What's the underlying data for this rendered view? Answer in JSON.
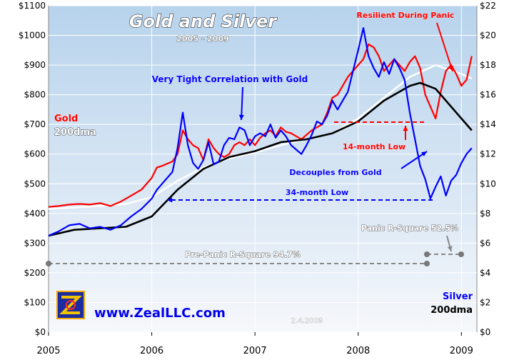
{
  "chart_data": {
    "type": "line",
    "title": "Gold and Silver",
    "subtitle": "2005 - 2009",
    "x_ticks": [
      "2005",
      "2006",
      "2007",
      "2008",
      "2009"
    ],
    "x_range": [
      2005.0,
      2009.15
    ],
    "left_axis": {
      "min": 0,
      "max": 1100,
      "step": 100,
      "tick_labels": [
        "$0",
        "$100",
        "$200",
        "$300",
        "$400",
        "$500",
        "$600",
        "$700",
        "$800",
        "$900",
        "$1000",
        "$1100"
      ]
    },
    "right_axis": {
      "min": 0,
      "max": 22,
      "step": 2,
      "tick_labels": [
        "$0",
        "$2",
        "$4",
        "$6",
        "$8",
        "$10",
        "$12",
        "$14",
        "$16",
        "$18",
        "$20",
        "$22"
      ]
    },
    "grid": true,
    "series": [
      {
        "name": "Gold",
        "axis": "left",
        "color": "#ff0000",
        "x": [
          2005.0,
          2005.1,
          2005.2,
          2005.3,
          2005.4,
          2005.5,
          2005.6,
          2005.7,
          2005.8,
          2005.9,
          2006.0,
          2006.05,
          2006.1,
          2006.2,
          2006.25,
          2006.3,
          2006.35,
          2006.4,
          2006.45,
          2006.5,
          2006.55,
          2006.6,
          2006.65,
          2006.7,
          2006.75,
          2006.8,
          2006.85,
          2006.9,
          2006.95,
          2007.0,
          2007.05,
          2007.1,
          2007.15,
          2007.2,
          2007.25,
          2007.3,
          2007.35,
          2007.4,
          2007.45,
          2007.5,
          2007.55,
          2007.6,
          2007.65,
          2007.7,
          2007.75,
          2007.8,
          2007.85,
          2007.9,
          2007.95,
          2008.0,
          2008.05,
          2008.1,
          2008.15,
          2008.2,
          2008.25,
          2008.3,
          2008.35,
          2008.4,
          2008.45,
          2008.5,
          2008.55,
          2008.6,
          2008.65,
          2008.7,
          2008.75,
          2008.8,
          2008.85,
          2008.9,
          2008.95,
          2009.0,
          2009.05,
          2009.1
        ],
        "y": [
          422,
          425,
          430,
          432,
          430,
          435,
          425,
          440,
          460,
          480,
          520,
          555,
          560,
          575,
          600,
          680,
          650,
          630,
          620,
          580,
          650,
          620,
          600,
          590,
          600,
          630,
          640,
          630,
          650,
          630,
          655,
          670,
          680,
          660,
          690,
          675,
          670,
          660,
          650,
          665,
          680,
          690,
          700,
          740,
          790,
          800,
          830,
          860,
          880,
          900,
          920,
          970,
          960,
          930,
          880,
          900,
          920,
          900,
          880,
          910,
          930,
          890,
          800,
          760,
          720,
          810,
          880,
          900,
          870,
          830,
          850,
          930
        ]
      },
      {
        "name": "Silver",
        "axis": "right",
        "color": "#0000ff",
        "x": [
          2005.0,
          2005.1,
          2005.2,
          2005.3,
          2005.4,
          2005.5,
          2005.6,
          2005.7,
          2005.8,
          2005.9,
          2006.0,
          2006.05,
          2006.1,
          2006.2,
          2006.25,
          2006.3,
          2006.35,
          2006.4,
          2006.45,
          2006.5,
          2006.55,
          2006.6,
          2006.65,
          2006.7,
          2006.75,
          2006.8,
          2006.85,
          2006.9,
          2006.95,
          2007.0,
          2007.05,
          2007.1,
          2007.15,
          2007.2,
          2007.25,
          2007.3,
          2007.35,
          2007.4,
          2007.45,
          2007.5,
          2007.55,
          2007.6,
          2007.65,
          2007.7,
          2007.75,
          2007.8,
          2007.85,
          2007.9,
          2007.95,
          2008.0,
          2008.05,
          2008.1,
          2008.15,
          2008.2,
          2008.25,
          2008.3,
          2008.35,
          2008.4,
          2008.45,
          2008.5,
          2008.55,
          2008.6,
          2008.65,
          2008.7,
          2008.75,
          2008.8,
          2008.85,
          2008.9,
          2008.95,
          2009.0,
          2009.05,
          2009.1
        ],
        "y": [
          6.5,
          6.8,
          7.2,
          7.3,
          7.0,
          7.1,
          6.9,
          7.2,
          7.8,
          8.3,
          9.0,
          9.6,
          10.0,
          10.8,
          12.4,
          14.8,
          12.6,
          11.4,
          11.0,
          11.6,
          12.8,
          11.3,
          11.5,
          12.6,
          13.1,
          13.0,
          13.8,
          13.6,
          12.6,
          13.2,
          13.4,
          13.2,
          14.0,
          13.1,
          13.6,
          13.2,
          12.6,
          12.3,
          12.0,
          12.6,
          13.3,
          14.2,
          14.0,
          14.6,
          15.6,
          15.0,
          15.6,
          16.2,
          17.6,
          19.0,
          20.5,
          18.6,
          17.8,
          17.2,
          18.2,
          17.4,
          18.4,
          17.8,
          17.0,
          14.8,
          13.0,
          11.2,
          10.3,
          9.0,
          9.8,
          10.5,
          9.2,
          10.2,
          10.6,
          11.4,
          12.0,
          12.4
        ]
      },
      {
        "name": "Gold 200dma",
        "axis": "left",
        "color": "#ffffff",
        "x": [
          2005.0,
          2005.25,
          2005.5,
          2005.75,
          2006.0,
          2006.25,
          2006.5,
          2006.75,
          2007.0,
          2007.25,
          2007.5,
          2007.75,
          2008.0,
          2008.25,
          2008.5,
          2008.75,
          2009.0,
          2009.1
        ],
        "y": [
          415,
          420,
          425,
          432,
          455,
          510,
          555,
          585,
          605,
          630,
          650,
          670,
          720,
          790,
          860,
          900,
          870,
          855
        ]
      },
      {
        "name": "Silver 200dma",
        "axis": "right",
        "color": "#000000",
        "x": [
          2005.0,
          2005.25,
          2005.5,
          2005.75,
          2006.0,
          2006.25,
          2006.5,
          2006.75,
          2007.0,
          2007.25,
          2007.5,
          2007.75,
          2008.0,
          2008.25,
          2008.5,
          2008.6,
          2008.75,
          2009.0,
          2009.1
        ],
        "y": [
          6.5,
          6.9,
          7.0,
          7.1,
          7.8,
          9.6,
          11.0,
          11.8,
          12.2,
          12.8,
          13.0,
          13.4,
          14.2,
          15.6,
          16.6,
          16.8,
          16.4,
          14.4,
          13.6
        ]
      }
    ],
    "legend": {
      "left_top": "Gold",
      "left_bottom": "200dma",
      "right_top": "Silver",
      "right_bottom": "200dma"
    },
    "annotations": {
      "correlation": "Very Tight Correlation with Gold",
      "resilient": "Resilient During Panic",
      "low14": "14-month Low",
      "decouples": "Decouples from Gold",
      "low34": "34-month Low",
      "panic_r2": "Panic R-Square 52.5%",
      "prepanic_r2": "Pre-Panic R-Square 94.7%",
      "website": "www.ZealLLC.com",
      "date": "2.4.2009"
    }
  }
}
